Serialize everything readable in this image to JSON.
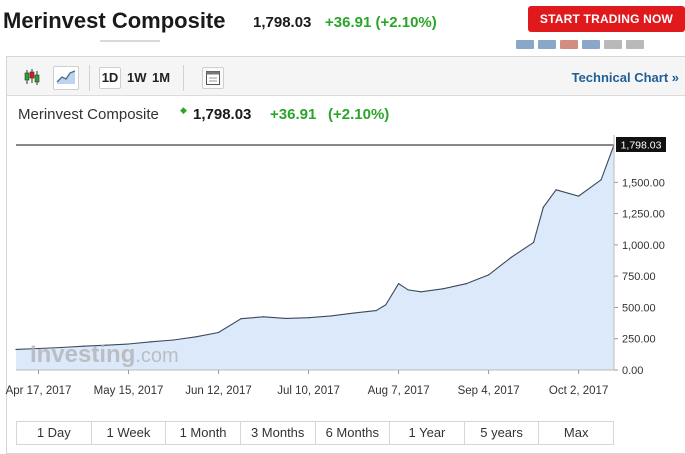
{
  "header": {
    "title": "Merinvest Composite",
    "price": "1,798.03",
    "change": "+36.91 (+2.10%)",
    "cta_label": "START TRADING NOW"
  },
  "toolbar": {
    "interval_buttons": [
      "1D",
      "1W",
      "1M"
    ],
    "technical_link": "Technical Chart »"
  },
  "chart_header": {
    "title": "Merinvest Composite",
    "price": "1,798.03",
    "change": "+36.91",
    "percent": "(+2.10%)"
  },
  "watermark": {
    "brand": "Investing",
    "suffix": ".com"
  },
  "range_buttons": [
    "1 Day",
    "1 Week",
    "1 Month",
    "3 Months",
    "6 Months",
    "1 Year",
    "5 years",
    "Max"
  ],
  "colors": {
    "accent_red": "#e0191d",
    "up_green": "#2aa52a",
    "line": "#3a4a5c",
    "area": "#dbe9fa",
    "link": "#1f5e96"
  },
  "chart_data": {
    "type": "area",
    "title": "Merinvest Composite",
    "xlabel": "",
    "ylabel": "",
    "x_tick_labels": [
      "Apr 17, 2017",
      "May 15, 2017",
      "Jun 12, 2017",
      "Jul 10, 2017",
      "Aug 7, 2017",
      "Sep 4, 2017",
      "Oct 2, 2017"
    ],
    "y_tick_labels": [
      "1,500.00",
      "1,250.00",
      "1,000.00",
      "750.00",
      "500.00",
      "250.00",
      "0.00"
    ],
    "ylim": [
      0,
      1798.03
    ],
    "last_value_label": "1,798.03",
    "grid": false,
    "x": [
      "2017-04-10",
      "2017-04-17",
      "2017-04-24",
      "2017-05-01",
      "2017-05-08",
      "2017-05-15",
      "2017-05-22",
      "2017-05-29",
      "2017-06-05",
      "2017-06-12",
      "2017-06-19",
      "2017-06-26",
      "2017-07-03",
      "2017-07-10",
      "2017-07-17",
      "2017-07-24",
      "2017-07-31",
      "2017-08-03",
      "2017-08-07",
      "2017-08-10",
      "2017-08-14",
      "2017-08-21",
      "2017-08-28",
      "2017-09-04",
      "2017-09-11",
      "2017-09-18",
      "2017-09-21",
      "2017-09-25",
      "2017-10-02",
      "2017-10-09",
      "2017-10-13"
    ],
    "values": [
      165,
      172,
      180,
      190,
      198,
      208,
      225,
      240,
      265,
      300,
      410,
      425,
      412,
      418,
      432,
      455,
      475,
      520,
      690,
      640,
      625,
      650,
      690,
      760,
      900,
      1020,
      1300,
      1440,
      1390,
      1520,
      1798.03
    ]
  }
}
